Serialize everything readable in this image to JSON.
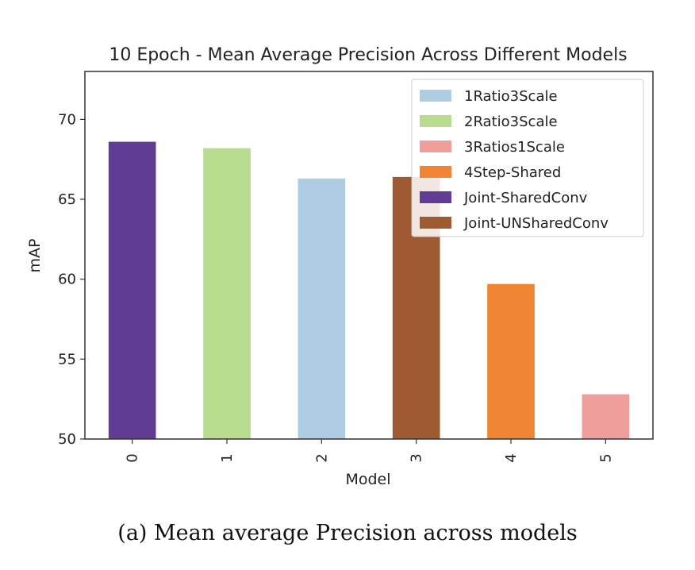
{
  "chart_data": {
    "type": "bar",
    "title": "10 Epoch - Mean Average Precision Across Different Models",
    "xlabel": "Model",
    "ylabel": "mAP",
    "categories": [
      "0",
      "1",
      "2",
      "3",
      "4",
      "5"
    ],
    "values": [
      68.6,
      68.2,
      66.3,
      66.4,
      59.7,
      52.8
    ],
    "bar_series": [
      "Joint-SharedConv",
      "2Ratio3Scale",
      "1Ratio3Scale",
      "Joint-UNSharedConv",
      "4Step-Shared",
      "3Ratios1Scale"
    ],
    "ylim": [
      50,
      73
    ],
    "yticks": [
      50,
      55,
      60,
      65,
      70
    ],
    "grid": false,
    "legend_position": "top-right",
    "legend": [
      {
        "name": "1Ratio3Scale",
        "color": "#aecde3"
      },
      {
        "name": "2Ratio3Scale",
        "color": "#b9dd8f"
      },
      {
        "name": "3Ratios1Scale",
        "color": "#f09e9c"
      },
      {
        "name": "4Step-Shared",
        "color": "#ef8533"
      },
      {
        "name": "Joint-SharedConv",
        "color": "#613c94"
      },
      {
        "name": "Joint-UNSharedConv",
        "color": "#a05a32"
      }
    ]
  },
  "caption": "(a) Mean average Precision across models"
}
